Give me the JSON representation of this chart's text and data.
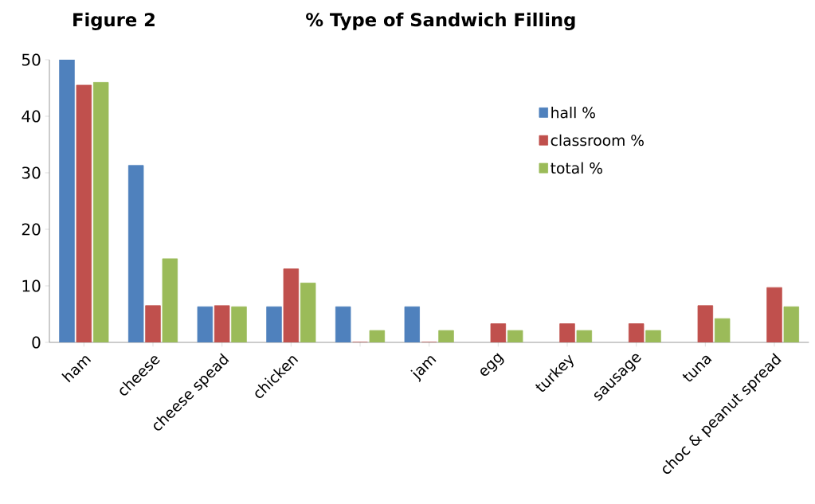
{
  "chart_data": {
    "type": "bar",
    "title": "% Type of Sandwich Filling",
    "annotations": [
      "Figure 2"
    ],
    "categories": [
      "ham",
      "cheese",
      "cheese spead",
      "chicken",
      null,
      "jam",
      "egg",
      "turkey",
      "sausage",
      "tuna",
      "choc & peanut spread"
    ],
    "series": [
      {
        "name": "hall %",
        "color": "#4f81bd",
        "values": [
          50,
          31.3,
          6.3,
          6.3,
          6.3,
          6.3,
          null,
          null,
          null,
          null,
          null
        ]
      },
      {
        "name": "classroom %",
        "color": "#c0504d",
        "values": [
          45.5,
          6.5,
          6.5,
          13,
          0,
          0,
          3.3,
          3.3,
          3.3,
          6.5,
          9.7
        ]
      },
      {
        "name": "total %",
        "color": "#9bbb59",
        "values": [
          46,
          14.8,
          6.3,
          10.5,
          2.1,
          2.1,
          2.1,
          2.1,
          2.1,
          4.2,
          6.3
        ]
      }
    ],
    "ylim": [
      0,
      50
    ],
    "yticks": [
      0,
      10,
      20,
      30,
      40,
      50
    ],
    "grid": false,
    "legend": "top right"
  }
}
